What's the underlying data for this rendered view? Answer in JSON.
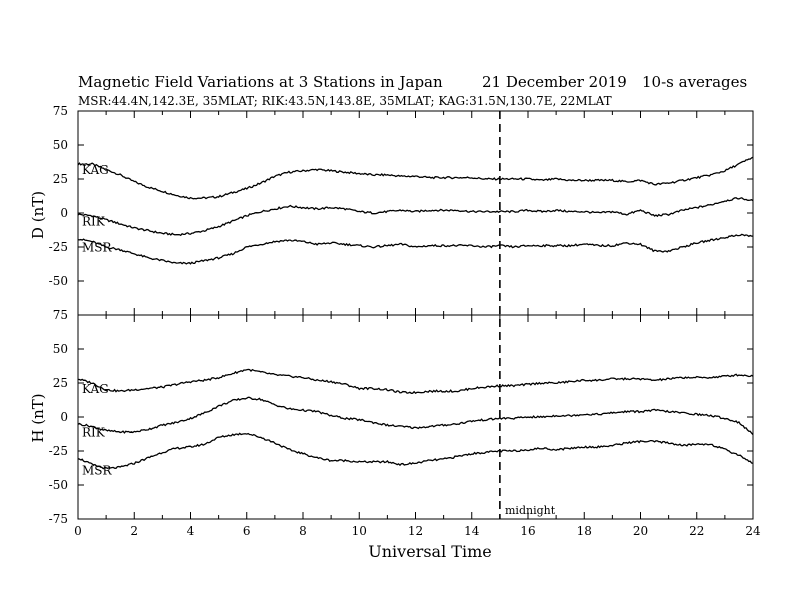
{
  "title": {
    "main": "Magnetic Field Variations at 3 Stations in Japan",
    "date": "21 December 2019",
    "averaging": "10-s averages",
    "stations_line": "MSR:44.4N,142.3E, 35MLAT;  RIK:43.5N,143.8E, 35MLAT;  KAG:31.5N,130.7E, 22MLAT"
  },
  "midnight_label": "midnight",
  "chart_data": [
    {
      "type": "line",
      "panel": "D",
      "ylabel": "D (nT)",
      "xlabel": "",
      "xlim": [
        0,
        24
      ],
      "ylim": [
        -75,
        75
      ],
      "yticks": [
        -75,
        -50,
        -25,
        0,
        25,
        50,
        75
      ],
      "x": [
        0,
        0.5,
        1,
        1.5,
        2,
        2.5,
        3,
        3.5,
        4,
        4.5,
        5,
        5.5,
        6,
        6.5,
        7,
        7.5,
        8,
        8.5,
        9,
        9.5,
        10,
        10.5,
        11,
        11.5,
        12,
        12.5,
        13,
        13.5,
        14,
        14.5,
        15,
        15.5,
        16,
        16.5,
        17,
        17.5,
        18,
        18.5,
        19,
        19.5,
        20,
        20.5,
        21,
        21.5,
        22,
        22.5,
        23,
        23.5,
        24
      ],
      "series": [
        {
          "name": "KAG",
          "values": [
            36,
            36,
            32,
            28,
            23,
            19,
            16,
            13,
            11,
            11,
            12,
            15,
            18,
            22,
            27,
            30,
            31,
            32,
            31,
            30,
            29,
            28,
            28,
            27,
            27,
            26,
            26,
            26,
            26,
            25,
            25,
            25,
            25,
            24,
            25,
            24,
            24,
            24,
            24,
            23,
            24,
            21,
            22,
            24,
            26,
            28,
            31,
            36,
            41
          ]
        },
        {
          "name": "RIK",
          "values": [
            -1,
            -2,
            -5,
            -8,
            -11,
            -13,
            -15,
            -16,
            -15,
            -13,
            -10,
            -6,
            -2,
            1,
            3,
            5,
            4,
            3,
            4,
            3,
            1,
            0,
            1,
            2,
            1,
            2,
            2,
            2,
            1,
            1,
            1,
            1,
            2,
            1,
            2,
            1,
            1,
            0,
            1,
            -1,
            2,
            -2,
            -1,
            2,
            4,
            6,
            9,
            11,
            9
          ]
        },
        {
          "name": "MSR",
          "values": [
            -19,
            -21,
            -25,
            -27,
            -30,
            -33,
            -35,
            -37,
            -37,
            -35,
            -33,
            -30,
            -25,
            -23,
            -21,
            -20,
            -21,
            -23,
            -22,
            -23,
            -24,
            -25,
            -24,
            -23,
            -25,
            -24,
            -24,
            -24,
            -24,
            -25,
            -24,
            -25,
            -24,
            -24,
            -24,
            -24,
            -23,
            -24,
            -24,
            -22,
            -23,
            -28,
            -28,
            -25,
            -22,
            -20,
            -18,
            -16,
            -17
          ]
        }
      ]
    },
    {
      "type": "line",
      "panel": "H",
      "ylabel": "H (nT)",
      "xlabel": "Universal Time",
      "xlim": [
        0,
        24
      ],
      "ylim": [
        -75,
        75
      ],
      "yticks": [
        -75,
        -50,
        -25,
        0,
        25,
        50,
        75
      ],
      "xticks": [
        0,
        2,
        4,
        6,
        8,
        10,
        12,
        14,
        16,
        18,
        20,
        22,
        24
      ],
      "midnight_ut": 15,
      "x": [
        0,
        0.5,
        1,
        1.5,
        2,
        2.5,
        3,
        3.5,
        4,
        4.5,
        5,
        5.5,
        6,
        6.5,
        7,
        7.5,
        8,
        8.5,
        9,
        9.5,
        10,
        10.5,
        11,
        11.5,
        12,
        12.5,
        13,
        13.5,
        14,
        14.5,
        15,
        15.5,
        16,
        16.5,
        17,
        17.5,
        18,
        18.5,
        19,
        19.5,
        20,
        20.5,
        21,
        21.5,
        22,
        22.5,
        23,
        23.5,
        24
      ],
      "series": [
        {
          "name": "KAG",
          "values": [
            28,
            25,
            20,
            19,
            20,
            21,
            22,
            24,
            26,
            27,
            29,
            32,
            35,
            33,
            31,
            30,
            29,
            27,
            26,
            24,
            21,
            21,
            20,
            18,
            18,
            19,
            19,
            19,
            21,
            22,
            23,
            23,
            24,
            25,
            25,
            26,
            27,
            27,
            28,
            28,
            28,
            27,
            28,
            29,
            29,
            29,
            30,
            31,
            30
          ]
        },
        {
          "name": "RIK",
          "values": [
            -5,
            -7,
            -10,
            -11,
            -11,
            -9,
            -6,
            -4,
            -1,
            3,
            8,
            12,
            14,
            13,
            9,
            6,
            5,
            4,
            1,
            -1,
            -2,
            -4,
            -6,
            -7,
            -8,
            -7,
            -6,
            -5,
            -3,
            -2,
            -1,
            -1,
            0,
            0,
            1,
            1,
            2,
            2,
            3,
            4,
            4,
            5,
            4,
            3,
            2,
            1,
            -1,
            -4,
            -13
          ]
        },
        {
          "name": "MSR",
          "values": [
            -30,
            -35,
            -38,
            -37,
            -34,
            -30,
            -26,
            -23,
            -22,
            -20,
            -15,
            -13,
            -12,
            -15,
            -19,
            -24,
            -27,
            -30,
            -32,
            -32,
            -33,
            -33,
            -33,
            -35,
            -34,
            -32,
            -31,
            -29,
            -27,
            -26,
            -25,
            -25,
            -24,
            -23,
            -24,
            -23,
            -22,
            -22,
            -21,
            -19,
            -18,
            -18,
            -19,
            -21,
            -20,
            -20,
            -24,
            -28,
            -34
          ]
        }
      ]
    }
  ]
}
